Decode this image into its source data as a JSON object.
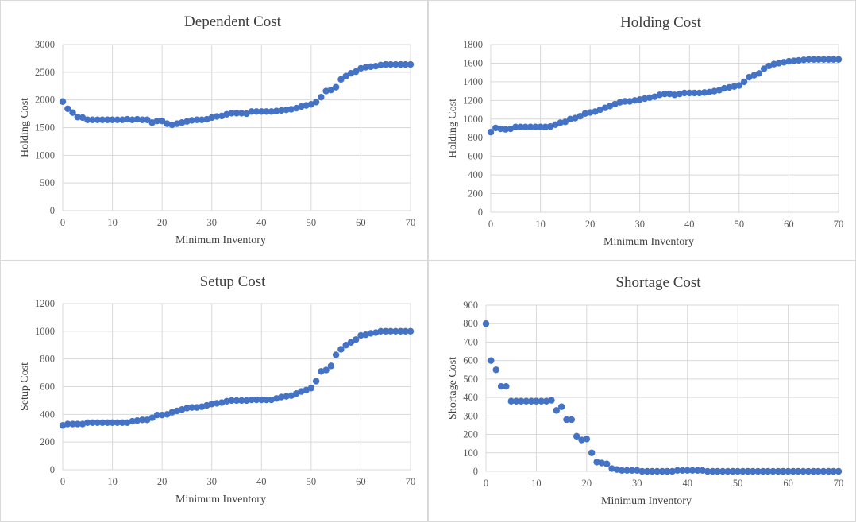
{
  "chart_data": [
    {
      "type": "scatter",
      "title": "Dependent Cost",
      "xlabel": "Minimum Inventory",
      "ylabel": "Holding Cost",
      "xlim": [
        0,
        70
      ],
      "ylim": [
        0,
        3000
      ],
      "xticks": [
        "0",
        "10",
        "20",
        "30",
        "40",
        "50",
        "60",
        "70"
      ],
      "yticks": [
        "0",
        "500",
        "1000",
        "1500",
        "2000",
        "2500",
        "3000"
      ],
      "grid": true,
      "marker_color": "#4472c4",
      "x": [
        0,
        1,
        2,
        3,
        4,
        5,
        6,
        7,
        8,
        9,
        10,
        11,
        12,
        13,
        14,
        15,
        16,
        17,
        18,
        19,
        20,
        21,
        22,
        23,
        24,
        25,
        26,
        27,
        28,
        29,
        30,
        31,
        32,
        33,
        34,
        35,
        36,
        37,
        38,
        39,
        40,
        41,
        42,
        43,
        44,
        45,
        46,
        47,
        48,
        49,
        50,
        51,
        52,
        53,
        54,
        55,
        56,
        57,
        58,
        59,
        60,
        61,
        62,
        63,
        64,
        65,
        66,
        67,
        68,
        69,
        70
      ],
      "y": [
        1970,
        1840,
        1770,
        1690,
        1680,
        1640,
        1640,
        1640,
        1640,
        1640,
        1640,
        1640,
        1640,
        1650,
        1640,
        1650,
        1640,
        1640,
        1590,
        1620,
        1620,
        1570,
        1550,
        1570,
        1590,
        1610,
        1630,
        1640,
        1640,
        1650,
        1680,
        1700,
        1710,
        1740,
        1760,
        1760,
        1760,
        1750,
        1790,
        1790,
        1790,
        1790,
        1790,
        1800,
        1810,
        1820,
        1830,
        1850,
        1880,
        1900,
        1920,
        1960,
        2050,
        2160,
        2180,
        2230,
        2370,
        2430,
        2480,
        2510,
        2570,
        2590,
        2600,
        2610,
        2630,
        2640,
        2640,
        2640,
        2640,
        2640,
        2640
      ]
    },
    {
      "type": "scatter",
      "title": "Holding Cost",
      "xlabel": "Minimum Inventory",
      "ylabel": "Holding Cost",
      "xlim": [
        0,
        70
      ],
      "ylim": [
        0,
        1800
      ],
      "xticks": [
        "0",
        "10",
        "20",
        "30",
        "40",
        "50",
        "60",
        "70"
      ],
      "yticks": [
        "0",
        "200",
        "400",
        "600",
        "800",
        "1000",
        "1200",
        "1400",
        "1600",
        "1800"
      ],
      "grid": true,
      "marker_color": "#4472c4",
      "x": [
        0,
        1,
        2,
        3,
        4,
        5,
        6,
        7,
        8,
        9,
        10,
        11,
        12,
        13,
        14,
        15,
        16,
        17,
        18,
        19,
        20,
        21,
        22,
        23,
        24,
        25,
        26,
        27,
        28,
        29,
        30,
        31,
        32,
        33,
        34,
        35,
        36,
        37,
        38,
        39,
        40,
        41,
        42,
        43,
        44,
        45,
        46,
        47,
        48,
        49,
        50,
        51,
        52,
        53,
        54,
        55,
        56,
        57,
        58,
        59,
        60,
        61,
        62,
        63,
        64,
        65,
        66,
        67,
        68,
        69,
        70
      ],
      "y": [
        860,
        905,
        895,
        890,
        895,
        915,
        915,
        915,
        915,
        915,
        915,
        915,
        920,
        940,
        960,
        970,
        1000,
        1010,
        1030,
        1060,
        1070,
        1080,
        1100,
        1120,
        1140,
        1160,
        1180,
        1190,
        1190,
        1200,
        1210,
        1220,
        1230,
        1240,
        1260,
        1270,
        1270,
        1260,
        1270,
        1280,
        1280,
        1280,
        1280,
        1285,
        1290,
        1300,
        1310,
        1330,
        1340,
        1350,
        1360,
        1400,
        1450,
        1470,
        1490,
        1540,
        1570,
        1590,
        1600,
        1610,
        1620,
        1625,
        1630,
        1635,
        1640,
        1640,
        1640,
        1640,
        1640,
        1640,
        1640
      ]
    },
    {
      "type": "scatter",
      "title": "Setup Cost",
      "xlabel": "Minimum Inventory",
      "ylabel": "Setup Cost",
      "xlim": [
        0,
        70
      ],
      "ylim": [
        0,
        1200
      ],
      "xticks": [
        "0",
        "10",
        "20",
        "30",
        "40",
        "50",
        "60",
        "70"
      ],
      "yticks": [
        "0",
        "200",
        "400",
        "600",
        "800",
        "1000",
        "1200"
      ],
      "grid": true,
      "marker_color": "#4472c4",
      "x": [
        0,
        1,
        2,
        3,
        4,
        5,
        6,
        7,
        8,
        9,
        10,
        11,
        12,
        13,
        14,
        15,
        16,
        17,
        18,
        19,
        20,
        21,
        22,
        23,
        24,
        25,
        26,
        27,
        28,
        29,
        30,
        31,
        32,
        33,
        34,
        35,
        36,
        37,
        38,
        39,
        40,
        41,
        42,
        43,
        44,
        45,
        46,
        47,
        48,
        49,
        50,
        51,
        52,
        53,
        54,
        55,
        56,
        57,
        58,
        59,
        60,
        61,
        62,
        63,
        64,
        65,
        66,
        67,
        68,
        69,
        70
      ],
      "y": [
        320,
        330,
        330,
        330,
        330,
        340,
        340,
        340,
        340,
        340,
        340,
        340,
        340,
        340,
        350,
        355,
        360,
        360,
        375,
        395,
        395,
        400,
        415,
        425,
        435,
        445,
        450,
        450,
        455,
        465,
        475,
        480,
        485,
        495,
        500,
        500,
        500,
        500,
        505,
        505,
        505,
        505,
        505,
        515,
        525,
        530,
        535,
        550,
        565,
        575,
        590,
        640,
        710,
        720,
        750,
        830,
        870,
        900,
        920,
        940,
        970,
        975,
        985,
        990,
        1000,
        1000,
        1000,
        1000,
        1000,
        1000,
        1000
      ]
    },
    {
      "type": "scatter",
      "title": "Shortage Cost",
      "xlabel": "Minimum Inventory",
      "ylabel": "Shortage Cost",
      "xlim": [
        0,
        70
      ],
      "ylim": [
        0,
        900
      ],
      "xticks": [
        "0",
        "10",
        "20",
        "30",
        "40",
        "50",
        "60",
        "70"
      ],
      "yticks": [
        "0",
        "100",
        "200",
        "300",
        "400",
        "500",
        "600",
        "700",
        "800",
        "900"
      ],
      "grid": true,
      "marker_color": "#4472c4",
      "x": [
        0,
        1,
        2,
        3,
        4,
        5,
        6,
        7,
        8,
        9,
        10,
        11,
        12,
        13,
        14,
        15,
        16,
        17,
        18,
        19,
        20,
        21,
        22,
        23,
        24,
        25,
        26,
        27,
        28,
        29,
        30,
        31,
        32,
        33,
        34,
        35,
        36,
        37,
        38,
        39,
        40,
        41,
        42,
        43,
        44,
        45,
        46,
        47,
        48,
        49,
        50,
        51,
        52,
        53,
        54,
        55,
        56,
        57,
        58,
        59,
        60,
        61,
        62,
        63,
        64,
        65,
        66,
        67,
        68,
        69,
        70
      ],
      "y": [
        800,
        600,
        550,
        460,
        460,
        380,
        380,
        380,
        380,
        380,
        380,
        380,
        380,
        385,
        330,
        350,
        280,
        280,
        190,
        170,
        175,
        100,
        50,
        45,
        40,
        15,
        10,
        5,
        5,
        5,
        5,
        0,
        0,
        0,
        0,
        0,
        0,
        0,
        5,
        5,
        5,
        5,
        5,
        5,
        0,
        0,
        0,
        0,
        0,
        0,
        0,
        0,
        0,
        0,
        0,
        0,
        0,
        0,
        0,
        0,
        0,
        0,
        0,
        0,
        0,
        0,
        0,
        0,
        0,
        0,
        0
      ]
    }
  ]
}
